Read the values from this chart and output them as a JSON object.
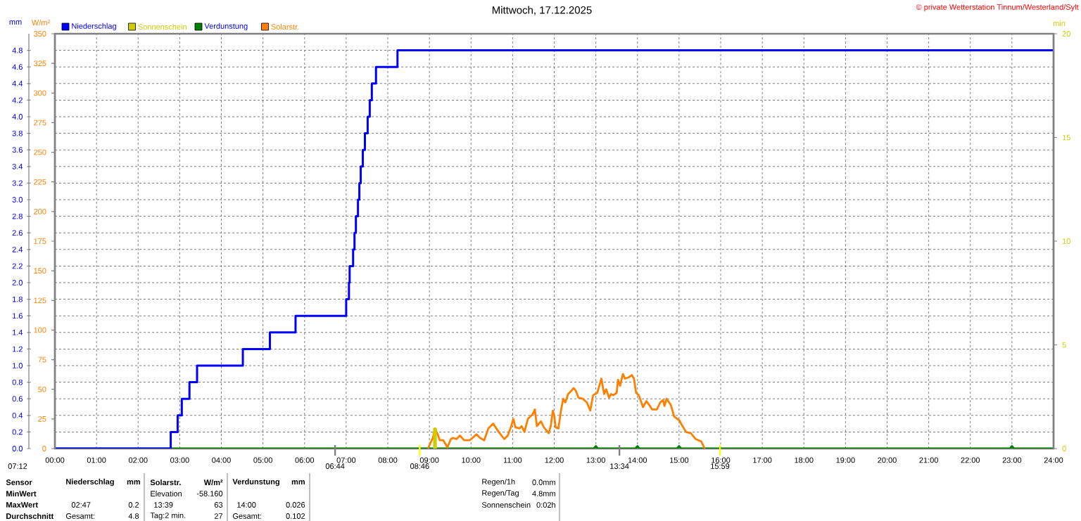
{
  "chart_data": {
    "type": "line",
    "title": "Mittwoch, 17.12.2025",
    "ylabel": "mm",
    "y2label": "W/m²",
    "y3label": "min",
    "annotations": [
      "© private Wetterstation Tinnum/Westerland/Sylt",
      "07:12",
      "Sensor",
      "MinWert",
      "MaxWert",
      "Durchschnitt",
      "Niederschlag",
      "mm",
      "02:47",
      "0.2",
      "Gesamt:",
      "4.8",
      "Solarstr.",
      "W/m²",
      "Elevation",
      "-58.160",
      "13:39",
      "63",
      "Tag:2 min.",
      "27",
      "Verdunstung",
      "mm",
      "14:00",
      "0.026",
      "Gesamt:",
      "0.102",
      "Regen/1h",
      "0.0mm",
      "Regen/Tag",
      "4.8mm",
      "Sonnenschein",
      "0:02h"
    ],
    "xlim": [
      "2025-12-17T00:00",
      "2025-12-18T00:00"
    ],
    "xticks": [
      {
        "value": "2025-12-17T00:00",
        "label": "00:00"
      },
      {
        "value": "2025-12-17T01:00",
        "label": "01:00"
      },
      {
        "value": "2025-12-17T02:00",
        "label": "02:00"
      },
      {
        "value": "2025-12-17T03:00",
        "label": "03:00"
      },
      {
        "value": "2025-12-17T04:00",
        "label": "04:00"
      },
      {
        "value": "2025-12-17T05:00",
        "label": "05:00"
      },
      {
        "value": "2025-12-17T06:00",
        "label": "06:00"
      },
      {
        "value": "2025-12-17T07:00",
        "label": "07:00"
      },
      {
        "value": "2025-12-17T08:00",
        "label": "08:00"
      },
      {
        "value": "2025-12-17T09:00",
        "label": "09:00"
      },
      {
        "value": "2025-12-17T10:00",
        "label": "10:00"
      },
      {
        "value": "2025-12-17T11:00",
        "label": "11:00"
      },
      {
        "value": "2025-12-17T12:00",
        "label": "12:00"
      },
      {
        "value": "2025-12-17T13:00",
        "label": "13:00"
      },
      {
        "value": "2025-12-17T14:00",
        "label": "14:00"
      },
      {
        "value": "2025-12-17T15:00",
        "label": "15:00"
      },
      {
        "value": "2025-12-17T16:00",
        "label": "16:00"
      },
      {
        "value": "2025-12-17T17:00",
        "label": "17:00"
      },
      {
        "value": "2025-12-17T18:00",
        "label": "18:00"
      },
      {
        "value": "2025-12-17T19:00",
        "label": "19:00"
      },
      {
        "value": "2025-12-17T20:00",
        "label": "20:00"
      },
      {
        "value": "2025-12-17T21:00",
        "label": "21:00"
      },
      {
        "value": "2025-12-17T22:00",
        "label": "22:00"
      },
      {
        "value": "2025-12-17T23:00",
        "label": "23:00"
      },
      {
        "value": "2025-12-18T00:00",
        "label": "24:00"
      }
    ],
    "ylim": [
      0,
      5
    ],
    "yticks": [
      {
        "value": 0,
        "label": "0.0"
      },
      0.2,
      0.4,
      0.6,
      0.8,
      {
        "value": 1,
        "label": "1.0"
      },
      1.2,
      1.4,
      1.6,
      1.8,
      {
        "value": 2,
        "label": "2.0"
      },
      2.2,
      2.4,
      2.6,
      2.8,
      {
        "value": 3,
        "label": "3.0"
      },
      3.2,
      3.4,
      3.6,
      3.8,
      {
        "value": 4,
        "label": "4.0"
      },
      4.2,
      4.4,
      4.6,
      4.8
    ],
    "y2lim": [
      0,
      350
    ],
    "y2ticks": [
      0,
      25,
      50,
      75,
      100,
      125,
      150,
      175,
      200,
      225,
      250,
      275,
      300,
      325,
      350
    ],
    "y3lim": [
      0,
      20
    ],
    "y3ticks": [
      0,
      5,
      10,
      15,
      20
    ],
    "grid": true,
    "legend": "top left",
    "ref_lines": [
      {
        "axis": "x",
        "value": "2025-12-17T06:44",
        "label": "06:44",
        "color": "#808080"
      },
      {
        "axis": "x",
        "value": "2025-12-17T08:46",
        "label": "08:46",
        "color": "#ffff00"
      },
      {
        "axis": "x",
        "value": "2025-12-17T13:34",
        "label": "13:34",
        "color": "#808080"
      },
      {
        "axis": "x",
        "value": "2025-12-17T15:59",
        "label": "15:59",
        "color": "#ffff00"
      }
    ],
    "series": [
      {
        "name": "Niederschlag",
        "type": "step",
        "color": "#0000ff",
        "x": [
          "2025-12-17T00:00",
          "2025-12-17T02:47",
          "2025-12-17T02:57",
          "2025-12-17T03:03",
          "2025-12-17T03:14",
          "2025-12-17T03:25",
          "2025-12-17T04:31",
          "2025-12-17T05:10",
          "2025-12-17T05:47",
          "2025-12-17T07:00",
          "2025-12-17T07:04",
          "2025-12-17T07:05",
          "2025-12-17T07:10",
          "2025-12-17T07:12",
          "2025-12-17T07:14",
          "2025-12-17T07:17",
          "2025-12-17T07:19",
          "2025-12-17T07:21",
          "2025-12-17T07:24",
          "2025-12-17T07:27",
          "2025-12-17T07:31",
          "2025-12-17T07:34",
          "2025-12-17T07:37",
          "2025-12-17T07:43",
          "2025-12-17T08:14",
          "2025-12-18T00:00"
        ],
        "values": [
          0,
          0.2,
          0.4,
          0.6,
          0.8,
          1.0,
          1.2,
          1.4,
          1.6,
          1.8,
          2.0,
          2.2,
          2.4,
          2.6,
          2.8,
          3.0,
          3.2,
          3.4,
          3.6,
          3.8,
          4.0,
          4.2,
          4.4,
          4.6,
          4.8,
          4.8
        ]
      },
      {
        "name": "Sonnenschein",
        "type": "bar",
        "axis": "y3",
        "color": "#cccc00",
        "x": [
          "2025-12-17T09:08"
        ],
        "values": [
          1
        ]
      },
      {
        "name": "Verdunstung",
        "type": "line",
        "color": "#008000",
        "x": [
          "2025-12-17T00:00",
          "2025-12-17T12:57",
          "2025-12-17T13:00",
          "2025-12-17T13:03",
          "2025-12-17T13:57",
          "2025-12-17T14:00",
          "2025-12-17T14:03",
          "2025-12-17T14:57",
          "2025-12-17T15:00",
          "2025-12-17T15:03",
          "2025-12-17T22:57",
          "2025-12-17T23:00",
          "2025-12-17T23:03",
          "2025-12-18T00:00"
        ],
        "values": [
          0,
          0,
          0.03,
          0,
          0,
          0.03,
          0,
          0,
          0.03,
          0,
          0,
          0.03,
          0,
          0
        ]
      },
      {
        "name": "Solarstr.",
        "type": "line",
        "axis": "y2",
        "color": "#ff8000",
        "x": [
          "2025-12-17T08:58",
          "2025-12-17T09:01",
          "2025-12-17T09:05",
          "2025-12-17T09:08",
          "2025-12-17T09:12",
          "2025-12-17T09:15",
          "2025-12-17T09:20",
          "2025-12-17T09:23",
          "2025-12-17T09:26",
          "2025-12-17T09:31",
          "2025-12-17T09:34",
          "2025-12-17T09:39",
          "2025-12-17T09:44",
          "2025-12-17T09:50",
          "2025-12-17T09:58",
          "2025-12-17T10:02",
          "2025-12-17T10:08",
          "2025-12-17T10:13",
          "2025-12-17T10:19",
          "2025-12-17T10:25",
          "2025-12-17T10:32",
          "2025-12-17T10:40",
          "2025-12-17T10:48",
          "2025-12-17T10:53",
          "2025-12-17T10:58",
          "2025-12-17T11:01",
          "2025-12-17T11:04",
          "2025-12-17T11:10",
          "2025-12-17T11:13",
          "2025-12-17T11:17",
          "2025-12-17T11:22",
          "2025-12-17T11:29",
          "2025-12-17T11:32",
          "2025-12-17T11:35",
          "2025-12-17T11:41",
          "2025-12-17T11:45",
          "2025-12-17T11:52",
          "2025-12-17T11:55",
          "2025-12-17T11:58",
          "2025-12-17T12:00",
          "2025-12-17T12:02",
          "2025-12-17T12:06",
          "2025-12-17T12:10",
          "2025-12-17T12:13",
          "2025-12-17T12:16",
          "2025-12-17T12:20",
          "2025-12-17T12:25",
          "2025-12-17T12:28",
          "2025-12-17T12:31",
          "2025-12-17T12:35",
          "2025-12-17T12:41",
          "2025-12-17T12:47",
          "2025-12-17T12:52",
          "2025-12-17T12:56",
          "2025-12-17T13:02",
          "2025-12-17T13:08",
          "2025-12-17T13:12",
          "2025-12-17T13:15",
          "2025-12-17T13:19",
          "2025-12-17T13:22",
          "2025-12-17T13:25",
          "2025-12-17T13:30",
          "2025-12-17T13:32",
          "2025-12-17T13:35",
          "2025-12-17T13:39",
          "2025-12-17T13:42",
          "2025-12-17T13:47",
          "2025-12-17T13:52",
          "2025-12-17T13:55",
          "2025-12-17T13:58",
          "2025-12-17T14:02",
          "2025-12-17T14:08",
          "2025-12-17T14:13",
          "2025-12-17T14:18",
          "2025-12-17T14:21",
          "2025-12-17T14:28",
          "2025-12-17T14:33",
          "2025-12-17T14:37",
          "2025-12-17T14:39",
          "2025-12-17T14:42",
          "2025-12-17T14:48",
          "2025-12-17T14:53",
          "2025-12-17T15:00",
          "2025-12-17T15:05",
          "2025-12-17T15:10",
          "2025-12-17T15:17",
          "2025-12-17T15:24",
          "2025-12-17T15:32",
          "2025-12-17T15:37"
        ],
        "values": [
          0,
          4,
          9,
          17,
          12,
          7,
          7,
          4,
          1,
          8,
          9,
          8,
          11,
          7,
          7,
          9,
          12,
          9,
          7,
          17,
          21,
          14,
          8,
          11,
          19,
          25,
          18,
          17,
          19,
          14,
          25,
          29,
          33,
          19,
          23,
          18,
          13,
          19,
          32,
          28,
          18,
          17,
          33,
          42,
          39,
          46,
          49,
          51,
          49,
          43,
          42,
          39,
          32,
          45,
          47,
          59,
          46,
          50,
          43,
          46,
          45,
          47,
          58,
          53,
          63,
          59,
          60,
          62,
          59,
          47,
          45,
          35,
          40,
          36,
          33,
          33,
          39,
          41,
          36,
          42,
          37,
          27,
          24,
          19,
          14,
          13,
          8,
          6,
          0
        ]
      }
    ]
  }
}
